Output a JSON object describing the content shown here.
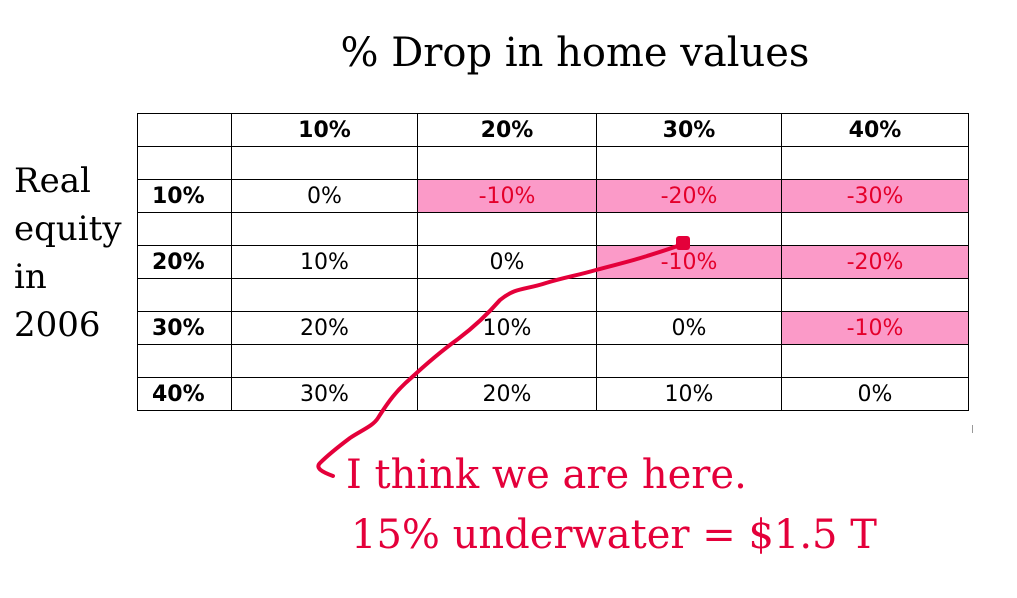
{
  "chart_data": {
    "type": "table",
    "title": "% Drop in home values",
    "row_label": [
      "Real",
      "equity",
      "in",
      "2006"
    ],
    "columns": [
      "10%",
      "20%",
      "30%",
      "40%"
    ],
    "rows": [
      {
        "label": "10%",
        "values": [
          "0%",
          "-10%",
          "-20%",
          "-30%"
        ]
      },
      {
        "label": "20%",
        "values": [
          "10%",
          "0%",
          "-10%",
          "-20%"
        ]
      },
      {
        "label": "30%",
        "values": [
          "20%",
          "10%",
          "0%",
          "-10%"
        ]
      },
      {
        "label": "40%",
        "values": [
          "30%",
          "20%",
          "10%",
          "0%"
        ]
      }
    ],
    "annotations": [
      "I think we are here.",
      "15% underwater = $1.5 T"
    ],
    "highlight_color": "#fb9ac8",
    "negative_text_color": "#e4002b",
    "annotation_color": "#e4003a"
  }
}
